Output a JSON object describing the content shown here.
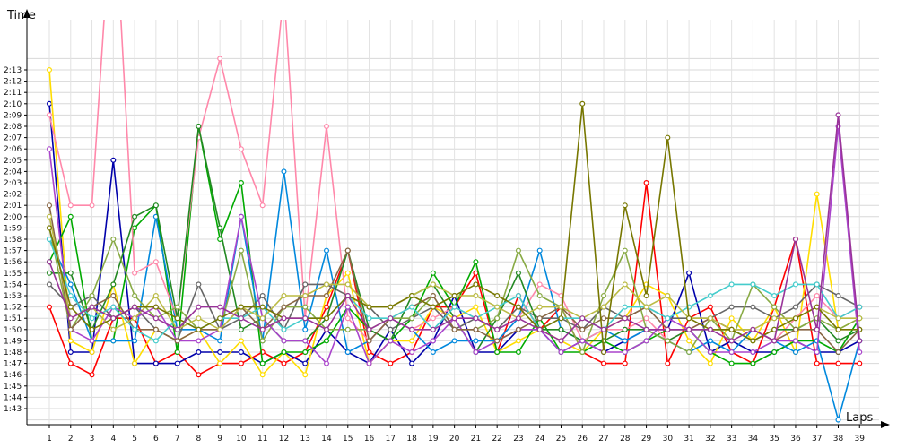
{
  "chart_data": {
    "type": "line",
    "title": "",
    "ylabel": "Time",
    "xlabel": "Laps",
    "x": [
      1,
      2,
      3,
      4,
      5,
      6,
      7,
      8,
      9,
      10,
      11,
      12,
      13,
      14,
      15,
      16,
      17,
      18,
      19,
      20,
      21,
      22,
      23,
      24,
      25,
      26,
      27,
      28,
      29,
      30,
      31,
      32,
      33,
      34,
      35,
      36,
      37,
      38,
      39
    ],
    "x_ticks": [
      "1",
      "2",
      "3",
      "4",
      "5",
      "6",
      "7",
      "8",
      "9",
      "10",
      "11",
      "12",
      "13",
      "14",
      "15",
      "16",
      "17",
      "18",
      "19",
      "20",
      "21",
      "22",
      "23",
      "24",
      "25",
      "26",
      "27",
      "28",
      "29",
      "30",
      "31",
      "32",
      "33",
      "34",
      "35",
      "36",
      "37",
      "38",
      "39"
    ],
    "y_ticks": [
      "1:43",
      "1:44",
      "1:45",
      "1:46",
      "1:47",
      "1:48",
      "1:49",
      "1:50",
      "1:51",
      "1:52",
      "1:53",
      "1:54",
      "1:55",
      "1:56",
      "1:57",
      "1:58",
      "1:59",
      "2:00",
      "2:01",
      "2:02",
      "2:03",
      "2:04",
      "2:05",
      "2:06",
      "2:07",
      "2:08",
      "2:09",
      "2:10",
      "2:11",
      "2:12",
      "2:13"
    ],
    "ylim_seconds": [
      102,
      134
    ],
    "grid": true,
    "legend": "none",
    "series": [
      {
        "color": "#ff0000",
        "values": [
          112,
          107,
          106,
          111,
          111,
          107,
          108,
          106,
          107,
          107,
          108,
          107,
          108,
          112,
          117,
          108,
          107,
          108,
          112,
          112,
          115,
          108,
          113,
          110,
          112,
          108,
          107,
          107,
          123,
          107,
          111,
          112,
          108,
          107,
          112,
          118,
          107,
          107,
          107
        ]
      },
      {
        "color": "#0000aa",
        "values": [
          130,
          108,
          108,
          125,
          107,
          107,
          107,
          108,
          108,
          108,
          107,
          108,
          107,
          110,
          108,
          107,
          110,
          107,
          109,
          113,
          108,
          108,
          110,
          110,
          108,
          109,
          108,
          109,
          110,
          110,
          115,
          108,
          109,
          108,
          108,
          109,
          108,
          108,
          109
        ]
      },
      {
        "color": "#ffdd00",
        "values": [
          133,
          109,
          108,
          114,
          107,
          110,
          109,
          110,
          107,
          109,
          106,
          108,
          106,
          113,
          115,
          107,
          109,
          109,
          112,
          111,
          112,
          108,
          109,
          110,
          109,
          108,
          110,
          111,
          114,
          113,
          109,
          107,
          111,
          109,
          112,
          108,
          122,
          110,
          111
        ]
      },
      {
        "color": "#00aa00",
        "values": [
          116,
          120,
          109,
          109,
          119,
          121,
          108,
          128,
          118,
          123,
          107,
          108,
          108,
          109,
          112,
          110,
          109,
          111,
          115,
          112,
          116,
          108,
          108,
          111,
          108,
          108,
          109,
          108,
          109,
          110,
          110,
          108,
          107,
          107,
          108,
          109,
          109,
          108,
          111
        ]
      },
      {
        "color": "#0088dd",
        "values": [
          118,
          114,
          109,
          109,
          109,
          120,
          110,
          110,
          109,
          120,
          109,
          124,
          110,
          117,
          108,
          109,
          111,
          110,
          108,
          109,
          109,
          109,
          111,
          117,
          110,
          109,
          110,
          109,
          110,
          109,
          108,
          109,
          108,
          110,
          109,
          108,
          109,
          102,
          109
        ]
      },
      {
        "color": "#ff88aa",
        "values": [
          129,
          121,
          121,
          150,
          115,
          116,
          111,
          127,
          134,
          126,
          121,
          140,
          111,
          128,
          111,
          109,
          111,
          110,
          111,
          112,
          111,
          110,
          111,
          114,
          113,
          109,
          110,
          110,
          111,
          109,
          110,
          111,
          110,
          110,
          109,
          111,
          113,
          111,
          112
        ]
      },
      {
        "color": "#666666",
        "values": [
          114,
          112,
          113,
          111,
          112,
          110,
          109,
          114,
          110,
          111,
          113,
          110,
          114,
          114,
          113,
          112,
          110,
          111,
          112,
          110,
          111,
          110,
          112,
          111,
          111,
          110,
          112,
          111,
          112,
          111,
          111,
          111,
          112,
          112,
          111,
          112,
          114,
          113,
          112
        ]
      },
      {
        "color": "#228822",
        "values": [
          115,
          115,
          110,
          114,
          120,
          121,
          111,
          128,
          119,
          110,
          111,
          109,
          109,
          111,
          117,
          110,
          109,
          113,
          114,
          111,
          108,
          111,
          115,
          110,
          110,
          109,
          109,
          110,
          110,
          109,
          110,
          110,
          110,
          109,
          110,
          110,
          111,
          109,
          110
        ]
      },
      {
        "color": "#88aa44",
        "values": [
          119,
          110,
          113,
          118,
          113,
          111,
          112,
          110,
          110,
          117,
          109,
          112,
          112,
          110,
          110,
          110,
          111,
          111,
          113,
          110,
          110,
          111,
          117,
          113,
          112,
          108,
          113,
          117,
          110,
          109,
          108,
          111,
          109,
          114,
          112,
          110,
          111,
          110,
          111
        ]
      },
      {
        "color": "#aa44cc",
        "values": [
          126,
          110,
          109,
          112,
          111,
          112,
          109,
          109,
          110,
          120,
          111,
          109,
          109,
          107,
          112,
          107,
          109,
          108,
          109,
          111,
          108,
          109,
          110,
          110,
          108,
          109,
          108,
          108,
          109,
          111,
          110,
          108,
          108,
          108,
          109,
          109,
          108,
          128,
          108
        ]
      },
      {
        "color": "#886644",
        "values": [
          121,
          110,
          112,
          113,
          110,
          110,
          109,
          110,
          110,
          112,
          110,
          112,
          113,
          113,
          117,
          109,
          111,
          112,
          113,
          110,
          110,
          109,
          110,
          111,
          112,
          110,
          111,
          111,
          112,
          110,
          110,
          111,
          110,
          110,
          109,
          110,
          110,
          108,
          110
        ]
      },
      {
        "color": "#44cccc",
        "values": [
          118,
          113,
          111,
          112,
          110,
          109,
          111,
          110,
          111,
          111,
          112,
          110,
          111,
          111,
          113,
          111,
          111,
          112,
          110,
          112,
          111,
          112,
          113,
          110,
          111,
          111,
          110,
          112,
          112,
          111,
          112,
          113,
          114,
          114,
          113,
          114,
          114,
          111,
          112
        ]
      },
      {
        "color": "#bbbb44",
        "values": [
          120,
          111,
          112,
          110,
          111,
          113,
          110,
          111,
          110,
          112,
          111,
          113,
          113,
          114,
          114,
          112,
          112,
          113,
          114,
          113,
          113,
          112,
          111,
          112,
          112,
          111,
          112,
          114,
          112,
          113,
          111,
          111,
          110,
          110,
          111,
          111,
          112,
          111,
          111
        ]
      },
      {
        "color": "#777700",
        "values": [
          119,
          112,
          110,
          111,
          112,
          112,
          111,
          110,
          111,
          112,
          112,
          111,
          111,
          111,
          113,
          112,
          112,
          113,
          112,
          113,
          114,
          113,
          112,
          110,
          111,
          130,
          108,
          121,
          113,
          127,
          111,
          110,
          110,
          109,
          110,
          111,
          112,
          110,
          110
        ]
      },
      {
        "color": "#993399",
        "values": [
          116,
          111,
          112,
          111,
          112,
          111,
          110,
          112,
          112,
          111,
          110,
          111,
          111,
          110,
          113,
          110,
          111,
          110,
          110,
          111,
          111,
          110,
          111,
          110,
          109,
          111,
          110,
          111,
          110,
          110,
          110,
          110,
          109,
          110,
          109,
          118,
          110,
          129,
          109
        ]
      }
    ]
  }
}
